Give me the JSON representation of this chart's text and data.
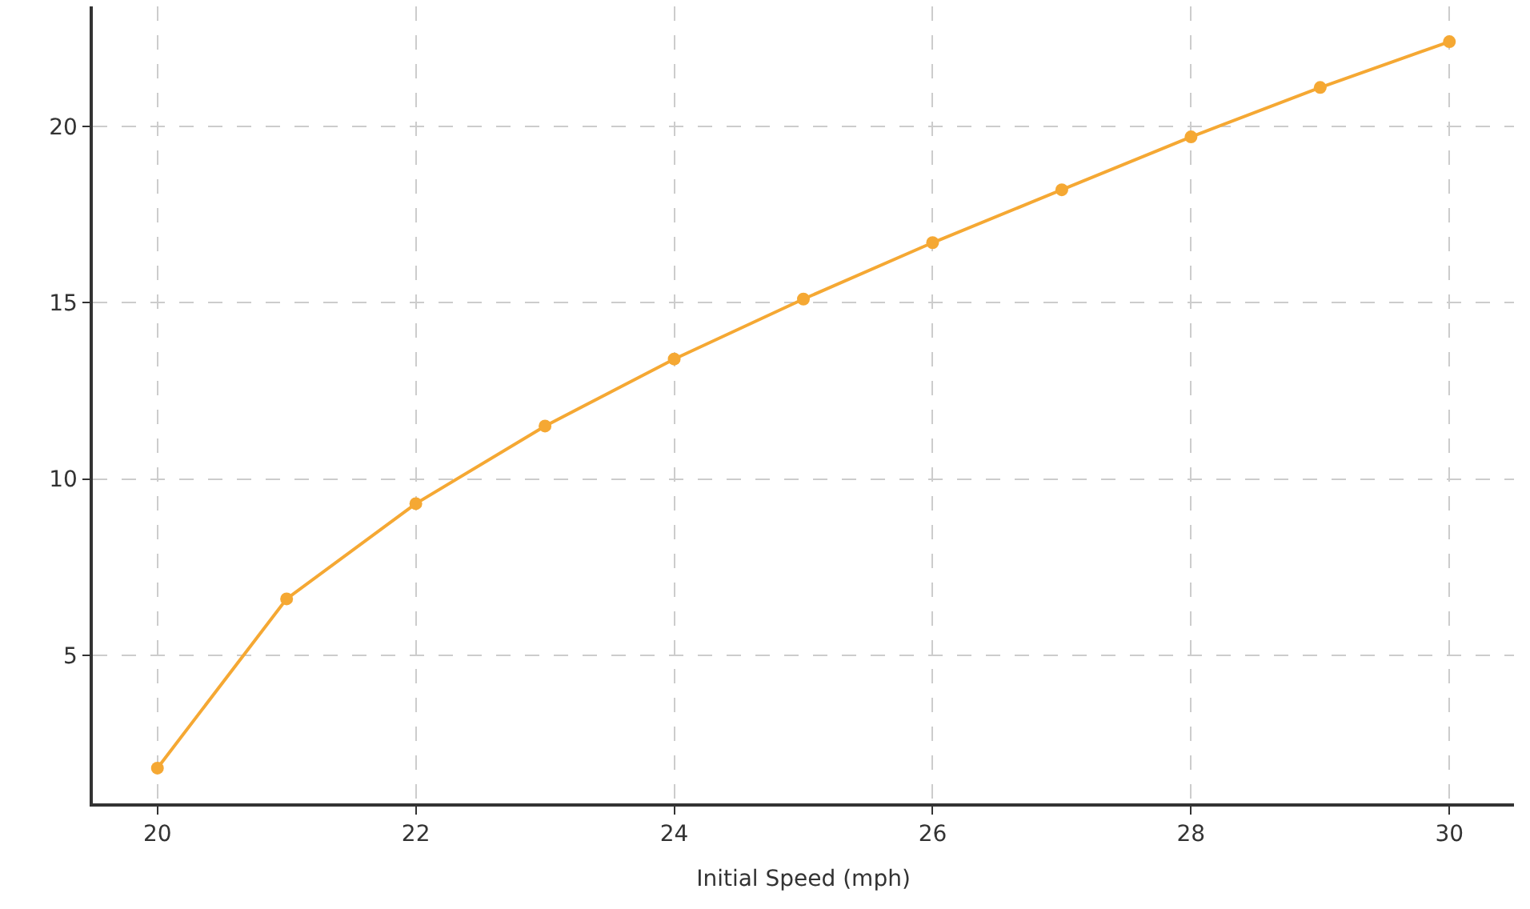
{
  "chart_data": {
    "type": "line",
    "xlabel": "Initial Speed (mph)",
    "x": [
      20,
      21,
      22,
      23,
      24,
      25,
      26,
      27,
      28,
      29,
      30
    ],
    "series": [
      {
        "color": "#f5a833",
        "values": [
          1.8,
          6.6,
          9.3,
          11.5,
          13.4,
          15.1,
          16.7,
          18.2,
          19.7,
          21.1,
          22.4
        ]
      }
    ],
    "xlim": [
      19.5,
      30.5
    ],
    "xticks": [
      20,
      22,
      24,
      26,
      28,
      30
    ],
    "ylim": [
      0.8,
      23.4
    ],
    "yticks": [
      5,
      10,
      15,
      20
    ],
    "grid": true,
    "marker": "circle",
    "line_style": "solid"
  }
}
